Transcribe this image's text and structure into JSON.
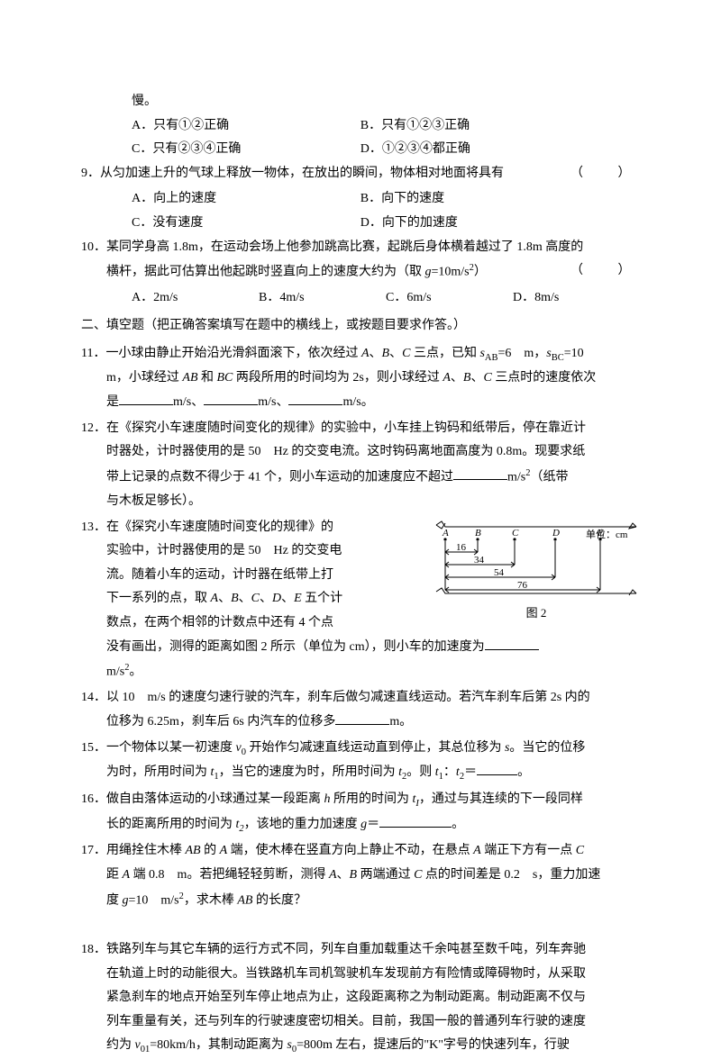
{
  "pre": {
    "tail": "慢。"
  },
  "q8": {
    "optA": "A．只有①②正确",
    "optB": "B．只有①②③正确",
    "optC": "C．只有②③④正确",
    "optD": "D．①②③④都正确"
  },
  "q9": {
    "stem": "9．从匀加速上升的气球上释放一物体，在放出的瞬间，物体相对地面将具有",
    "paren": "（　　）",
    "optA": "A．向上的速度",
    "optB": "B．向下的速度",
    "optC": "C．没有速度",
    "optD": "D．向下的加速度"
  },
  "q10": {
    "line1a": "10．某同学身高 1.8m，在运动会场上他参加跳高比赛，起跳后身体横着越过了 1.8m 高度的",
    "line1b": "横杆，据此可估算出他起跳时竖直向上的速度大约为（取 ",
    "gexpr_pre": "g",
    "gexpr_post": "=10m/s",
    "line1c": "）",
    "paren": "（　　）",
    "optA": "A．2m/s",
    "optB": "B．4m/s",
    "optC": "C．6m/s",
    "optD": "D．8m/s"
  },
  "section2": "二、填空题（把正确答案填写在题中的横线上，或按题目要求作答。）",
  "q11": {
    "l1a": "11．一小球由静止开始沿光滑斜面滚下，依次经过 ",
    "l1b": "、",
    "l1c": " 三点，已知  ",
    "l1d": "=6　m，",
    "l1e": "=10",
    "l2a": "m，小球经过 ",
    "l2b": " 和 ",
    "l2c": " 两段所用的时间均为 2s，则小球经过 ",
    "l2d": " 三点时的速度依次",
    "l3a": "是",
    "l3b": "m/s、",
    "l3c": "m/s、",
    "l3d": "m/s。"
  },
  "q12": {
    "l1": "12．在《探究小车速度随时间变化的规律》的实验中，小车挂上钩码和纸带后，停在靠近计",
    "l2": "时器处，计时器使用的是 50　Hz 的交变电流。这时钩码离地面高度为 0.8m。现要求纸",
    "l3a": "带上记录的点数不得少于 41 个，则小车运动的加速度应不超过",
    "l3b": "m/s",
    "l3c": "（纸带",
    "l4": "与木板足够长）。"
  },
  "q13": {
    "l1": "13．在《探究小车速度随时间变化的规律》的",
    "l2": "实验中，计时器使用的是 50　Hz 的交变电",
    "l3": "流。随着小车的运动，计时器在纸带上打",
    "l4a": "下一系列的点，取 ",
    "l4b": " 五个计",
    "l5": "数点，在两个相邻的计数点中还有 4 个点",
    "l6a": "没有画出，测得的距离如图 2 所示（单位为 cm），则小车的加速度为",
    "l7": "m/s",
    "l7b": "。"
  },
  "figure2": {
    "unit_label": "单位：cm",
    "points": [
      "A",
      "B",
      "C",
      "D",
      "E"
    ],
    "x": [
      14,
      50,
      91,
      136,
      186
    ],
    "d_AB": "16",
    "d_AC": "34",
    "d_AD": "54",
    "d_AE": "76",
    "caption": "图 2",
    "colors": {
      "line": "#000000",
      "bg": "#ffffff"
    }
  },
  "q14": {
    "l1": "14．以 10　m/s 的速度匀速行驶的汽车，刹车后做匀减速直线运动。若汽车刹车后第 2s 内的",
    "l2a": "位移为 6.25m，刹车后 6s 内汽车的位移多",
    "l2b": "m。"
  },
  "q15": {
    "l1a": "15．一个物体以某一初速度 ",
    "l1b": " 开始作匀减速直线运动直到停止，其总位移为 ",
    "l1c": "。当它的位移",
    "l2a": "为时，所用时间为 ",
    "l2b": "，当它的速度为时，所用时间为 ",
    "l2c": "。则 ",
    "l2d": "：",
    "l2e": "＝",
    "l2f": "。"
  },
  "q16": {
    "l1a": "16．做自由落体运动的小球通过某一段距离 ",
    "l1b": " 所用的时间为 ",
    "l1c": "，通过与其连续的下一段同样",
    "l2a": "长的距离所用的时间为 ",
    "l2b": "，该地的重力加速度 ",
    "l2c": "＝",
    "l2d": "。"
  },
  "q17": {
    "l1a": "17．用绳拴住木棒 ",
    "l1b": " 的 ",
    "l1c": " 端，使木棒在竖直方向上静止不动，在悬点 ",
    "l1d": " 端正下方有一点 ",
    "l2a": "距 ",
    "l2b": " 端 0.8　m。若把绳轻轻剪断，测得 ",
    "l2c": "、",
    "l2d": " 两端通过 ",
    "l2e": " 点的时间差是 0.2　s，重力加速",
    "l3a": "度 ",
    "l3b": "=10　m/s",
    "l3c": "，求木棒 ",
    "l3d": " 的长度？"
  },
  "q18": {
    "l1": "18．铁路列车与其它车辆的运行方式不同，列车自重加载重达千余吨甚至数千吨，列车奔驰",
    "l2": "在轨道上时的动能很大。当铁路机车司机驾驶机车发现前方有险情或障碍物时，从采取",
    "l3": "紧急刹车的地点开始至列车停止地点为止，这段距离称之为制动距离。制动距离不仅与",
    "l4": "列车重量有关，还与列车的行驶速度密切相关。目前，我国一般的普通列车行驶的速度",
    "l5a": "约为 ",
    "l5b": "=80km/h，其制动距离为 ",
    "l5c": "=800m 左右，提速后的\"K\"字号的快速列车，行驶"
  },
  "italic_vars": {
    "A": "A",
    "B": "B",
    "C": "C",
    "D": "D",
    "E": "E",
    "AB": "AB",
    "BC": "BC",
    "sAB_pre": "s",
    "sAB_sub": "AB",
    "sBC_sub": "BC",
    "g": "g",
    "v0_pre": "v",
    "v0_sub": "0",
    "s": "s",
    "t1_pre": "t",
    "t1_sub": "1",
    "t2_sub": "2",
    "h": "h",
    "tI_sub": "I",
    "tII": "t",
    "v01_sub": "01",
    "s0_sub": "0"
  }
}
